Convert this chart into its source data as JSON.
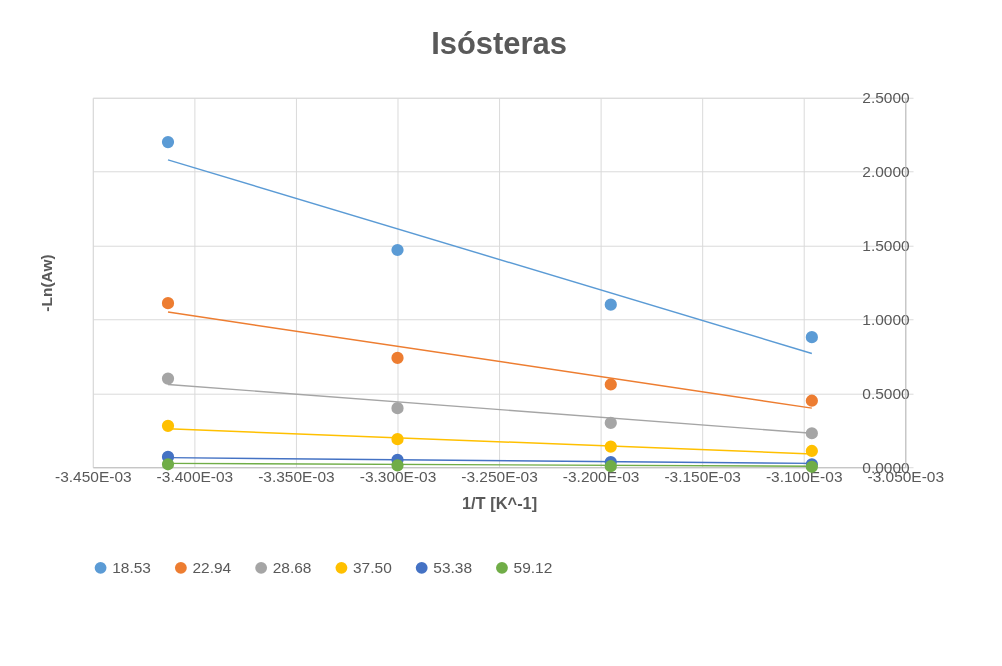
{
  "chart_data": {
    "type": "scatter",
    "title": "Isósteras",
    "xlabel": "1/T [K^-1]",
    "ylabel": "-Ln(Aw)",
    "xlim": [
      -0.00345,
      -0.00305
    ],
    "xticks": [
      {
        "value": -0.00345,
        "label": "-3.450E-03"
      },
      {
        "value": -0.0034,
        "label": "-3.400E-03"
      },
      {
        "value": -0.00335,
        "label": "-3.350E-03"
      },
      {
        "value": -0.0033,
        "label": "-3.300E-03"
      },
      {
        "value": -0.00325,
        "label": "-3.250E-03"
      },
      {
        "value": -0.0032,
        "label": "-3.200E-03"
      },
      {
        "value": -0.00315,
        "label": "-3.150E-03"
      },
      {
        "value": -0.0031,
        "label": "-3.100E-03"
      },
      {
        "value": -0.00305,
        "label": "-3.050E-03"
      }
    ],
    "ylim": [
      0,
      2.5
    ],
    "yticks": [
      {
        "value": 0,
        "label": "0.0000"
      },
      {
        "value": 0.5,
        "label": "0.5000"
      },
      {
        "value": 1,
        "label": "1.0000"
      },
      {
        "value": 1.5,
        "label": "1.5000"
      },
      {
        "value": 2,
        "label": "2.0000"
      },
      {
        "value": 2.5,
        "label": "2.5000"
      }
    ],
    "grid": true,
    "legend": "bottom",
    "marker": "circle",
    "series": [
      {
        "name": "18.53",
        "color": "#5b9bd5",
        "x": [
          -0.003413,
          -0.0033,
          -0.003195,
          -0.003096
        ],
        "values": [
          2.2,
          1.47,
          1.1,
          0.88
        ]
      },
      {
        "name": "22.94",
        "color": "#ed7d31",
        "x": [
          -0.003413,
          -0.0033,
          -0.003195,
          -0.003096
        ],
        "values": [
          1.11,
          0.74,
          0.56,
          0.45
        ]
      },
      {
        "name": "28.68",
        "color": "#a5a5a5",
        "x": [
          -0.003413,
          -0.0033,
          -0.003195,
          -0.003096
        ],
        "values": [
          0.6,
          0.4,
          0.3,
          0.23
        ]
      },
      {
        "name": "37.50",
        "color": "#ffc000",
        "x": [
          -0.003413,
          -0.0033,
          -0.003195,
          -0.003096
        ],
        "values": [
          0.28,
          0.19,
          0.14,
          0.11
        ]
      },
      {
        "name": "53.38",
        "color": "#4472c4",
        "x": [
          -0.003413,
          -0.0033,
          -0.003195,
          -0.003096
        ],
        "values": [
          0.07,
          0.05,
          0.035,
          0.02
        ]
      },
      {
        "name": "59.12",
        "color": "#70ad47",
        "x": [
          -0.003413,
          -0.0033,
          -0.003195,
          -0.003096
        ],
        "values": [
          0.02,
          0.013,
          0.007,
          0.003
        ]
      },
      {
        "type": "line",
        "marker": "none",
        "color": "#5b9bd5",
        "x": [
          -0.003413,
          -0.003096
        ],
        "values": [
          2.08,
          0.77
        ]
      },
      {
        "type": "line",
        "marker": "none",
        "color": "#ed7d31",
        "x": [
          -0.003413,
          -0.003096
        ],
        "values": [
          1.05,
          0.4
        ]
      },
      {
        "type": "line",
        "marker": "none",
        "color": "#a5a5a5",
        "x": [
          -0.003413,
          -0.003096
        ],
        "values": [
          0.56,
          0.23
        ]
      },
      {
        "type": "line",
        "marker": "none",
        "color": "#ffc000",
        "x": [
          -0.003413,
          -0.003096
        ],
        "values": [
          0.26,
          0.09
        ]
      },
      {
        "type": "line",
        "marker": "none",
        "color": "#4472c4",
        "x": [
          -0.003413,
          -0.003096
        ],
        "values": [
          0.065,
          0.026
        ]
      },
      {
        "type": "line",
        "marker": "none",
        "color": "#70ad47",
        "x": [
          -0.003413,
          -0.003096
        ],
        "values": [
          0.026,
          0.007
        ]
      }
    ]
  }
}
